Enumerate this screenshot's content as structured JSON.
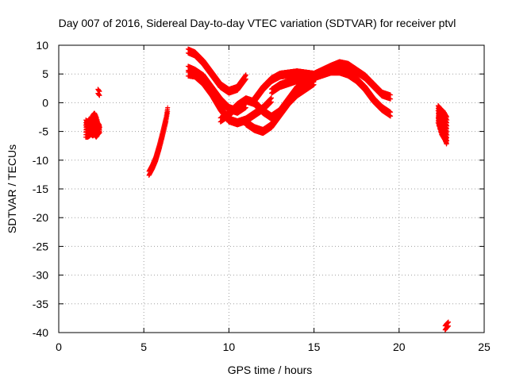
{
  "chart_data": {
    "type": "scatter",
    "title": "Day 007 of 2016, Sidereal Day-to-day VTEC variation (SDTVAR) for receiver ptvl",
    "xlabel": "GPS time / hours",
    "ylabel": "SDTVAR / TECUs",
    "xlim": [
      0,
      25
    ],
    "ylim": [
      -40,
      10
    ],
    "xticks": [
      0,
      5,
      10,
      15,
      20,
      25
    ],
    "yticks": [
      10,
      5,
      0,
      -5,
      -10,
      -15,
      -20,
      -25,
      -30,
      -35,
      -40
    ],
    "grid": true,
    "marker": "+",
    "series_color": "#ff0000",
    "segments": [
      {
        "name": "cluster-1.6-2.4h",
        "x": [
          1.6,
          1.7,
          1.8,
          1.9,
          2.0,
          2.1,
          2.2,
          2.3,
          2.4
        ],
        "y_low": [
          -6,
          -6,
          -5.8,
          -5.5,
          -5.8,
          -5.5,
          -6,
          -5.5,
          -5.2
        ],
        "y_high": [
          -3,
          -3.5,
          -2.8,
          -2.8,
          -2.2,
          -1.8,
          -2.5,
          -3.5,
          -4.0
        ]
      },
      {
        "name": "point-2.35h",
        "x": [
          2.3,
          2.35,
          2.4
        ],
        "y": [
          2.0,
          1.8,
          1.6
        ]
      },
      {
        "name": "rise-5.3-6.4h",
        "x": [
          5.3,
          5.5,
          5.7,
          5.9,
          6.1,
          6.3,
          6.4
        ],
        "y": [
          -12.3,
          -11.2,
          -9.8,
          -7.8,
          -5.5,
          -3.0,
          -1.2
        ]
      },
      {
        "name": "arc-a",
        "x": [
          7.6,
          8.0,
          8.5,
          9.0,
          9.5,
          10.0,
          10.5,
          11.0
        ],
        "y": [
          9.0,
          8.5,
          7.0,
          5.0,
          3.0,
          2.0,
          2.5,
          4.5
        ]
      },
      {
        "name": "arc-b",
        "x": [
          7.6,
          8.0,
          8.5,
          9.0,
          9.5,
          10.0,
          10.5,
          11.0
        ],
        "y": [
          6.0,
          5.5,
          4.5,
          2.5,
          0.5,
          -1.0,
          -1.5,
          -0.5
        ]
      },
      {
        "name": "arc-c",
        "x": [
          7.6,
          8.0,
          8.5,
          9.0,
          9.5,
          10.0,
          10.5,
          11.0,
          11.5,
          12.0,
          12.5
        ],
        "y": [
          5.0,
          4.8,
          3.5,
          1.5,
          -1.0,
          -3.0,
          -3.5,
          -3.0,
          -2.0,
          -1.0,
          0.5
        ]
      },
      {
        "name": "wave-d",
        "x": [
          9.5,
          10.0,
          10.5,
          11.0,
          11.5,
          12.0,
          12.5,
          13.0,
          13.5,
          14.0,
          14.5,
          15.0
        ],
        "y": [
          -3.0,
          -2.0,
          -0.5,
          0.5,
          0.0,
          -1.5,
          -2.5,
          -1.5,
          0.5,
          2.5,
          3.5,
          4.0
        ]
      },
      {
        "name": "wave-e",
        "x": [
          11.0,
          11.5,
          12.0,
          12.5,
          13.0,
          13.5,
          14.0,
          14.5,
          15.0
        ],
        "y": [
          -3.5,
          -4.5,
          -5.0,
          -4.0,
          -2.0,
          0.0,
          1.5,
          2.5,
          3.5
        ]
      },
      {
        "name": "wave-f",
        "x": [
          11.5,
          12.0,
          12.5,
          13.0,
          13.5,
          14.0,
          14.5,
          15.0,
          15.5,
          16.0,
          16.5,
          17.0,
          17.5,
          18.0,
          18.5,
          19.0,
          19.5
        ],
        "y": [
          0.5,
          2.5,
          4.0,
          4.8,
          5.0,
          5.2,
          5.0,
          4.8,
          5.5,
          6.2,
          6.8,
          6.5,
          5.5,
          4.5,
          3.0,
          1.5,
          1.0
        ]
      },
      {
        "name": "wave-g",
        "x": [
          12.5,
          13.0,
          13.5,
          14.0,
          14.5,
          15.0,
          15.5,
          16.0,
          16.5,
          17.0,
          17.5,
          18.0,
          18.5,
          19.0,
          19.5
        ],
        "y": [
          2.0,
          3.0,
          3.5,
          4.0,
          4.0,
          4.5,
          5.0,
          5.5,
          5.5,
          5.0,
          4.0,
          2.5,
          0.5,
          -1.0,
          -2.0
        ]
      },
      {
        "name": "cluster-22.3-22.8h",
        "x": [
          22.3,
          22.4,
          22.5,
          22.6,
          22.7,
          22.8
        ],
        "y_low": [
          -3.5,
          -4.5,
          -5.5,
          -6.0,
          -6.5,
          -7.2
        ],
        "y_high": [
          -0.5,
          -1.0,
          -1.2,
          -1.5,
          -2.0,
          -2.5
        ]
      },
      {
        "name": "point-22.8h",
        "x": [
          22.7,
          22.8,
          22.9
        ],
        "y": [
          -39.2,
          -38.8,
          -38.5
        ]
      }
    ]
  }
}
